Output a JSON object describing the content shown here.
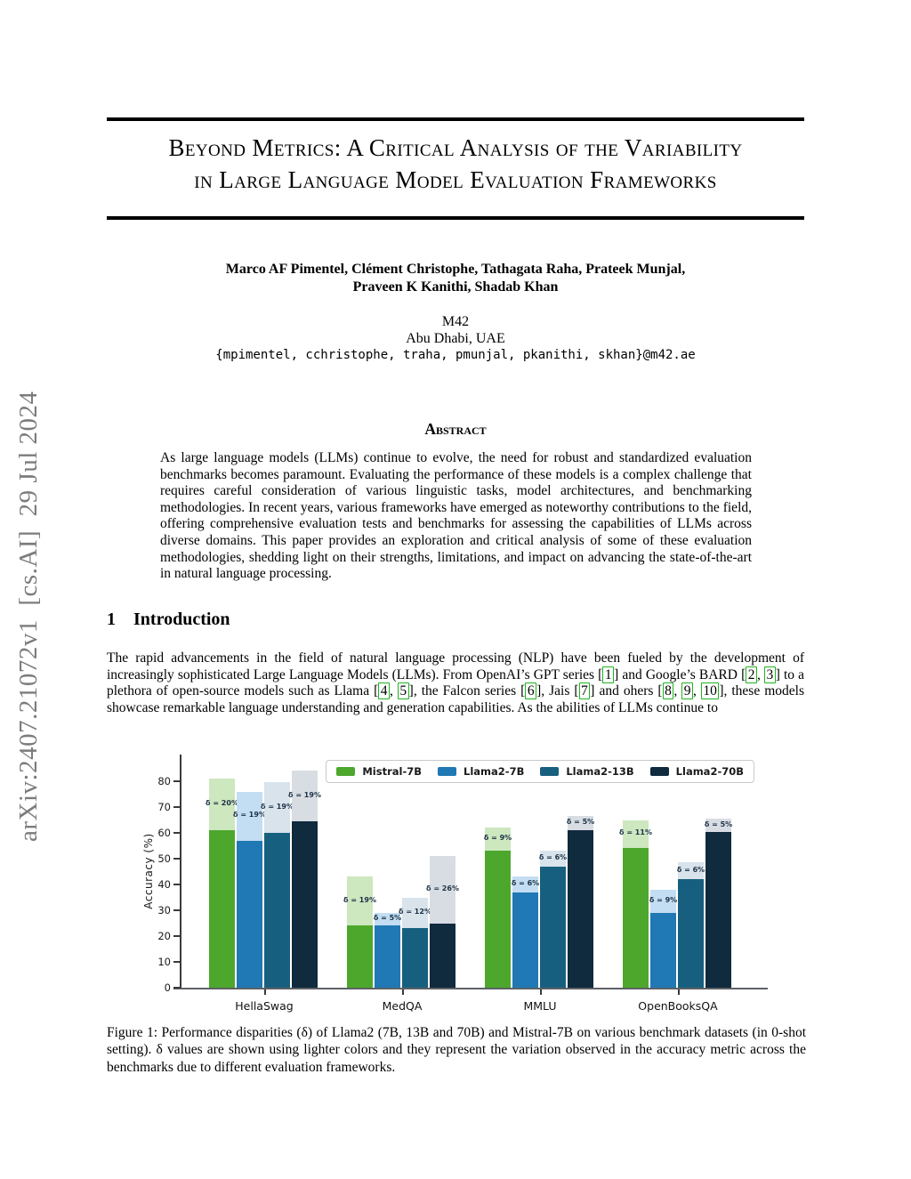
{
  "arxiv_watermark": "arXiv:2407.21072v1  [cs.AI]  29 Jul 2024",
  "title": {
    "line1": "Beyond Metrics: A Critical Analysis of the Variability",
    "line2": "in Large Language Model Evaluation Frameworks"
  },
  "authors": {
    "line1": "Marco AF Pimentel, Clément Christophe, Tathagata Raha, Prateek Munjal,",
    "line2": "Praveen K Kanithi, Shadab Khan"
  },
  "affiliation": {
    "org": "M42",
    "location": "Abu Dhabi, UAE",
    "email": "{mpimentel, cchristophe, traha, pmunjal, pkanithi, skhan}@m42.ae"
  },
  "abstract": {
    "heading": "Abstract",
    "text": "As large language models (LLMs) continue to evolve, the need for robust and standardized evaluation benchmarks becomes paramount. Evaluating the performance of these models is a complex challenge that requires careful consideration of various linguistic tasks, model architectures, and benchmarking methodologies. In recent years, various frameworks have emerged as noteworthy contributions to the field, offering comprehensive evaluation tests and benchmarks for assessing the capabilities of LLMs across diverse domains. This paper provides an exploration and critical analysis of some of these evaluation methodologies, shedding light on their strengths, limitations, and impact on advancing the state-of-the-art in natural language processing."
  },
  "introduction": {
    "number": "1",
    "heading": "Introduction",
    "segments": [
      {
        "text": "The rapid advancements in the field of natural language processing (NLP) have been fueled by the development of increasingly sophisticated Large Language Models (LLMs). From OpenAI’s GPT series "
      },
      {
        "cite": [
          "1"
        ]
      },
      {
        "text": " and Google’s BARD "
      },
      {
        "cite": [
          "2",
          "3"
        ]
      },
      {
        "text": " to a plethora of open-source models such as Llama "
      },
      {
        "cite": [
          "4",
          "5"
        ]
      },
      {
        "text": ", the Falcon series "
      },
      {
        "cite": [
          "6"
        ]
      },
      {
        "text": ", Jais "
      },
      {
        "cite": [
          "7"
        ]
      },
      {
        "text": " and ohers "
      },
      {
        "cite": [
          "8",
          "9",
          "10"
        ]
      },
      {
        "text": ", these models showcase remarkable language understanding and generation capabilities. As the abilities of LLMs continue to"
      }
    ],
    "citation_box_color": "#1db41f"
  },
  "figure_caption": "Figure 1: Performance disparities (δ) of Llama2 (7B, 13B and 70B) and Mistral-7B on various benchmark datasets (in 0-shot setting). δ values are shown using lighter colors and they represent the variation observed in the accuracy metric across the benchmarks due to different evaluation frameworks.",
  "chart_data": {
    "type": "bar",
    "title": "",
    "xlabel": "",
    "ylabel": "Accuracy (%)",
    "ylim": [
      0,
      90
    ],
    "yticks": [
      0,
      10,
      20,
      30,
      40,
      50,
      60,
      70,
      80
    ],
    "grid": false,
    "legend_position": "upper right inside",
    "delta_label_color": "#1d3246",
    "categories": [
      "HellaSwag",
      "MedQA",
      "MMLU",
      "OpenBooksQA"
    ],
    "series": [
      {
        "name": "Mistral-7B",
        "color": "#4da72c",
        "light_color": "#cde7bf",
        "values": [
          61,
          24,
          53,
          54
        ],
        "max_values": [
          81,
          43,
          62,
          65
        ],
        "delta_labels": [
          "δ = 20%",
          "δ = 19%",
          "δ = 9%",
          "δ = 11%"
        ]
      },
      {
        "name": "Llama2-7B",
        "color": "#2078b4",
        "light_color": "#c3ddf2",
        "values": [
          57,
          24,
          37,
          29
        ],
        "max_values": [
          76,
          29,
          43,
          38
        ],
        "delta_labels": [
          "δ = 19%",
          "δ = 5%",
          "δ = 6%",
          "δ = 9%"
        ]
      },
      {
        "name": "Llama2-13B",
        "color": "#175f7e",
        "light_color": "#d8e3ec",
        "values": [
          60,
          23,
          47,
          42
        ],
        "max_values": [
          79.5,
          35,
          53,
          48.5
        ],
        "delta_labels": [
          "δ = 19%",
          "δ = 12%",
          "δ = 6%",
          "δ = 6%"
        ]
      },
      {
        "name": "Llama2-70B",
        "color": "#102a3e",
        "light_color": "#d8dde3",
        "values": [
          64.5,
          25,
          61,
          60.5
        ],
        "max_values": [
          84,
          51,
          66.5,
          65.5
        ],
        "delta_labels": [
          "δ = 19%",
          "δ = 26%",
          "δ = 5%",
          "δ = 5%"
        ]
      }
    ]
  }
}
